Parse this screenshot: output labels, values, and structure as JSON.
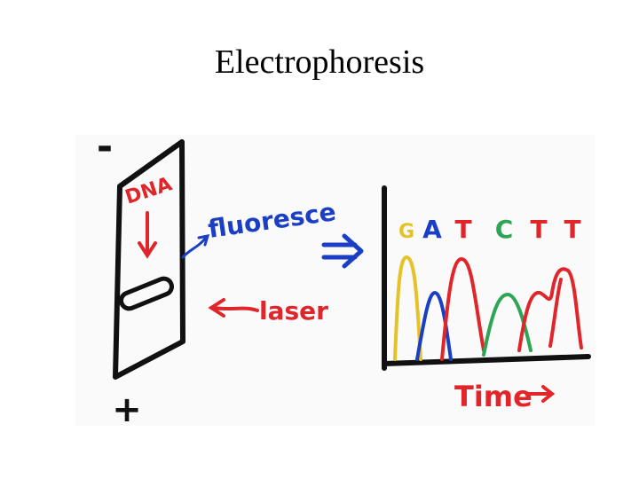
{
  "title": "Electrophoresis",
  "gel": {
    "top_label": "-",
    "bottom_label": "+",
    "sample_label": "DNA"
  },
  "labels": {
    "fluorescence": "fluoresce",
    "laser": "laser"
  },
  "chromatogram": {
    "bases": [
      {
        "letter": "G",
        "color": "#e6c229"
      },
      {
        "letter": "A",
        "color": "#1b3fc4"
      },
      {
        "letter": "T",
        "color": "#e0262a"
      },
      {
        "letter": "C",
        "color": "#2ea455"
      },
      {
        "letter": "T",
        "color": "#e0262a"
      },
      {
        "letter": "T",
        "color": "#e0262a"
      }
    ],
    "x_label": "Time"
  }
}
